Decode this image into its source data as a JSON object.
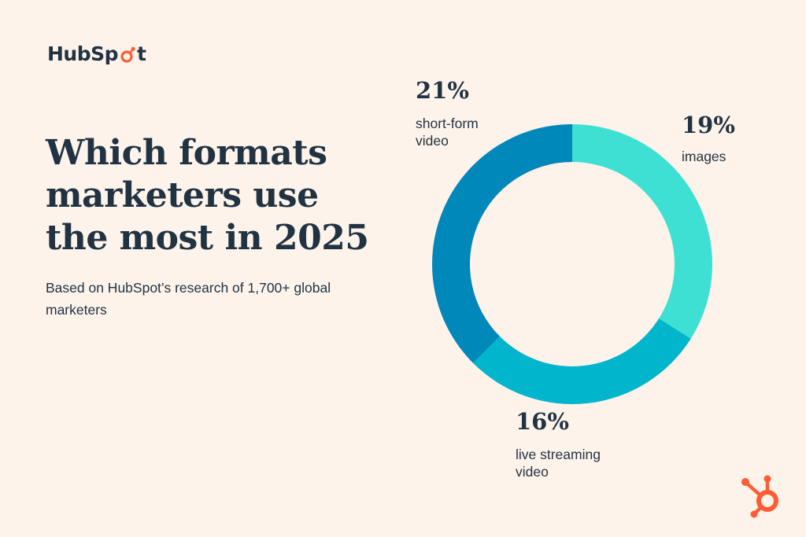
{
  "brand": {
    "logo_text_before": "HubSp",
    "logo_text_after": "t",
    "accent": "#ff5c35",
    "text_color": "#213343",
    "background": "#fdf3ea"
  },
  "heading": {
    "title": "Which formats marketers use the most in 2025",
    "subtitle": "Based on HubSpot’s research of 1,700+ global marketers"
  },
  "chart_data": {
    "type": "pie",
    "style": "donut",
    "unit": "%",
    "slices": [
      {
        "label": "images",
        "value": 19,
        "display": "19%",
        "color": "#3ee0d4"
      },
      {
        "label": "live streaming video",
        "value": 16,
        "display": "16%",
        "color": "#00b5cc"
      },
      {
        "label": "short-form video",
        "value": 21,
        "display": "21%",
        "color": "#0088ba"
      }
    ]
  }
}
